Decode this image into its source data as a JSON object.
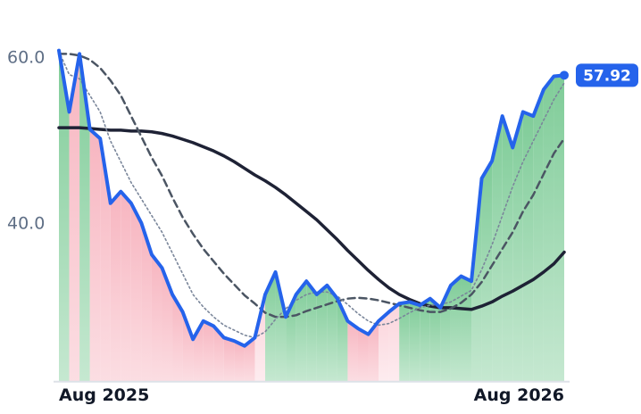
{
  "chart_data": {
    "type": "line",
    "categories": [
      "Aug 2025",
      null,
      null,
      null,
      null,
      null,
      null,
      null,
      null,
      null,
      null,
      null,
      null,
      null,
      null,
      null,
      null,
      null,
      null,
      null,
      null,
      null,
      null,
      null,
      null,
      null,
      null,
      null,
      null,
      null,
      null,
      null,
      null,
      null,
      null,
      null,
      null,
      null,
      null,
      null,
      null,
      null,
      null,
      null,
      null,
      null,
      null,
      null,
      null,
      "Aug 2026"
    ],
    "series": [
      {
        "color": "#2563eb",
        "style": "solid",
        "width": 4,
        "values": [
          60.9,
          53.5,
          60.5,
          51.4,
          50.3,
          42.5,
          43.9,
          42.5,
          40.1,
          36.3,
          34.7,
          31.5,
          29.4,
          26.1,
          28.3,
          27.7,
          26.3,
          25.9,
          25.3,
          26.3,
          31.5,
          34.2,
          28.8,
          31.5,
          33.1,
          31.5,
          32.6,
          31.0,
          28.3,
          27.4,
          26.7,
          28.3,
          29.4,
          30.4,
          30.6,
          30.2,
          31.0,
          29.9,
          32.6,
          33.7,
          33.1,
          45.5,
          47.6,
          53.0,
          49.2,
          53.5,
          53.0,
          56.2,
          57.8,
          57.92
        ],
        "value_labels": [
          null,
          null,
          null,
          null,
          null,
          null,
          null,
          null,
          null,
          null,
          null,
          null,
          null,
          null,
          null,
          null,
          null,
          null,
          null,
          null,
          null,
          null,
          null,
          null,
          null,
          null,
          null,
          null,
          null,
          null,
          null,
          null,
          null,
          null,
          null,
          null,
          null,
          null,
          null,
          null,
          null,
          null,
          null,
          null,
          null,
          null,
          null,
          null,
          null,
          "57.92"
        ]
      },
      {
        "color": "#7a869a",
        "style": "dotted",
        "width": 1.6,
        "values": [
          60.8,
          58.0,
          57.5,
          55.5,
          53.5,
          50.0,
          47.5,
          45.0,
          43.0,
          41.0,
          39.0,
          36.5,
          34.0,
          31.5,
          30.0,
          28.8,
          27.8,
          27.2,
          26.6,
          26.3,
          27.0,
          28.5,
          29.8,
          30.8,
          31.5,
          31.8,
          31.8,
          31.3,
          30.3,
          29.2,
          28.3,
          27.8,
          28.0,
          28.6,
          29.3,
          29.9,
          30.2,
          30.3,
          30.6,
          31.3,
          32.0,
          34.5,
          37.5,
          41.0,
          44.5,
          47.5,
          50.0,
          52.5,
          55.0,
          57.0
        ]
      },
      {
        "color": "#4b5563",
        "style": "dashed",
        "width": 2.5,
        "values": [
          60.5,
          60.5,
          60.3,
          59.8,
          58.8,
          57.3,
          55.5,
          53.0,
          50.5,
          48.0,
          45.8,
          43.2,
          40.8,
          38.8,
          37.0,
          35.5,
          34.0,
          32.7,
          31.4,
          30.4,
          29.3,
          28.8,
          28.8,
          29.0,
          29.5,
          29.9,
          30.3,
          30.7,
          31.0,
          31.1,
          31.0,
          30.8,
          30.5,
          30.2,
          29.9,
          29.6,
          29.4,
          29.4,
          29.8,
          30.5,
          31.5,
          33.0,
          35.0,
          37.0,
          39.0,
          41.5,
          43.5,
          46.0,
          48.5,
          50.3
        ]
      },
      {
        "color": "#1e2235",
        "style": "solid",
        "width": 3.5,
        "values": [
          51.6,
          51.6,
          51.6,
          51.5,
          51.4,
          51.3,
          51.3,
          51.2,
          51.2,
          51.1,
          50.9,
          50.6,
          50.2,
          49.8,
          49.3,
          48.8,
          48.2,
          47.5,
          46.7,
          45.9,
          45.2,
          44.4,
          43.5,
          42.5,
          41.5,
          40.5,
          39.3,
          38.1,
          36.8,
          35.6,
          34.4,
          33.3,
          32.3,
          31.5,
          30.9,
          30.4,
          30.1,
          29.9,
          29.9,
          29.8,
          29.7,
          30.1,
          30.6,
          31.3,
          31.9,
          32.6,
          33.3,
          34.2,
          35.2,
          36.6
        ]
      }
    ],
    "fill_colors": {
      "above_strong": "#7fcc98",
      "above_weak": "#bfe6cb",
      "below_strong": "#f7b5c0",
      "below_weak": "#fbd5dc"
    },
    "ylim": [
      21,
      63
    ],
    "yticks": [
      {
        "value": 40,
        "label": "40.0"
      },
      {
        "value": 60,
        "label": "60.0"
      }
    ],
    "grid": false
  }
}
